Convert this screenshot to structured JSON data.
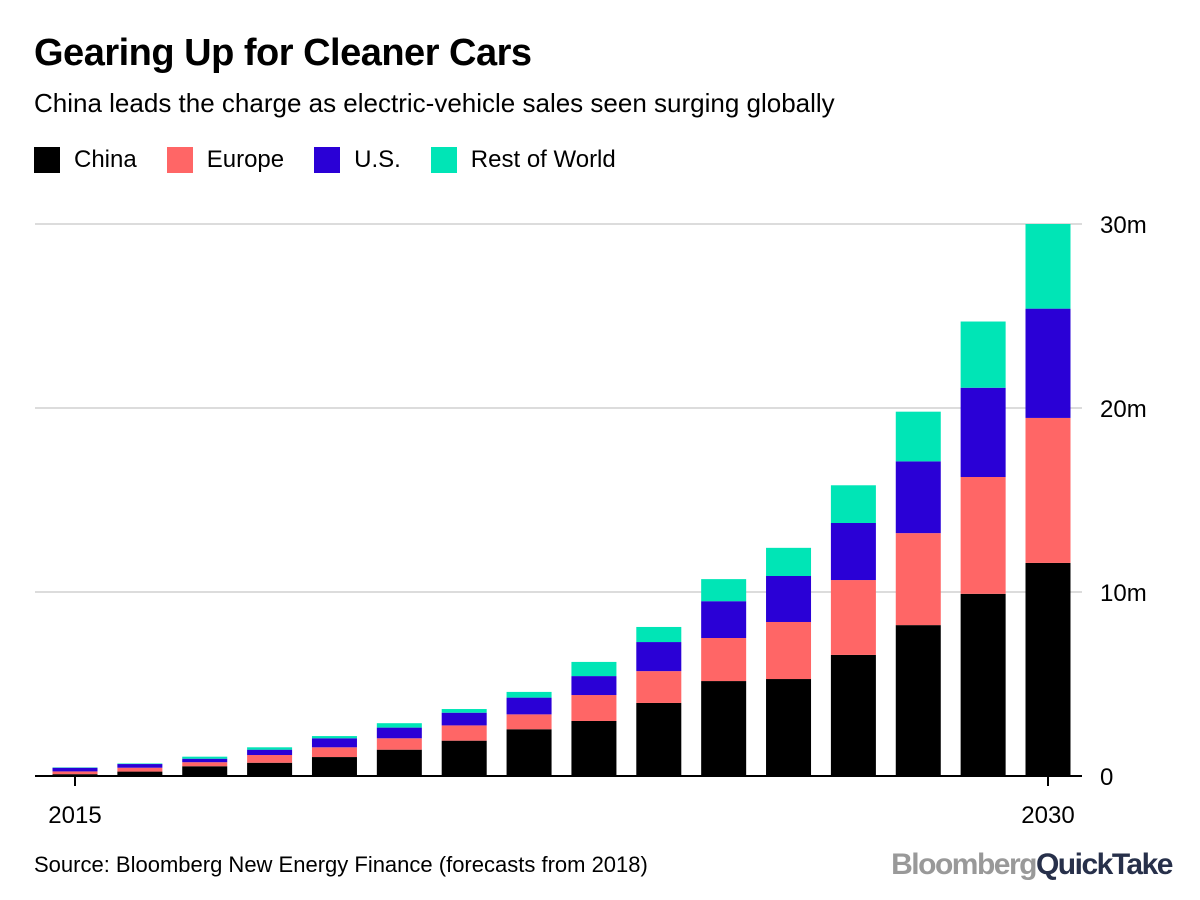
{
  "title": "Gearing Up for Cleaner Cars",
  "subtitle": "China leads the charge as electric-vehicle sales seen surging globally",
  "source": "Source: Bloomberg New Energy Finance (forecasts from 2018)",
  "logo": {
    "part1": "Bloomberg",
    "part2": "QuickTake"
  },
  "chart_data": {
    "type": "bar",
    "stacked": true,
    "categories": [
      2015,
      2016,
      2017,
      2018,
      2019,
      2020,
      2021,
      2022,
      2023,
      2024,
      2025,
      2026,
      2027,
      2028,
      2029,
      2030
    ],
    "x_tick_labels": [
      "2015",
      "2030"
    ],
    "y_tick_labels": [
      "0",
      "10m",
      "20m",
      "30m"
    ],
    "y_ticks": [
      0,
      10,
      20,
      30
    ],
    "ylim": [
      0,
      30
    ],
    "grid": true,
    "legend_position": "top-left",
    "series": [
      {
        "name": "China",
        "color": "#000000",
        "values": [
          0.1,
          0.24,
          0.53,
          0.72,
          1.03,
          1.43,
          1.92,
          2.54,
          2.99,
          3.97,
          5.16,
          5.27,
          6.58,
          8.2,
          9.9,
          11.58
        ]
      },
      {
        "name": "Europe",
        "color": "#ff6666",
        "values": [
          0.15,
          0.21,
          0.22,
          0.42,
          0.53,
          0.62,
          0.83,
          0.81,
          1.41,
          1.73,
          2.34,
          3.1,
          4.07,
          5.0,
          6.35,
          7.88
        ]
      },
      {
        "name": "U.S.",
        "color": "#2a00d6",
        "values": [
          0.2,
          0.2,
          0.19,
          0.29,
          0.49,
          0.58,
          0.69,
          0.91,
          1.03,
          1.58,
          2.0,
          2.5,
          3.1,
          3.9,
          4.85,
          5.94
        ]
      },
      {
        "name": "Rest of World",
        "color": "#00e5b6",
        "values": [
          0.02,
          0.03,
          0.11,
          0.13,
          0.12,
          0.24,
          0.2,
          0.31,
          0.77,
          0.82,
          1.2,
          1.53,
          2.05,
          2.7,
          3.6,
          4.6
        ]
      }
    ]
  }
}
